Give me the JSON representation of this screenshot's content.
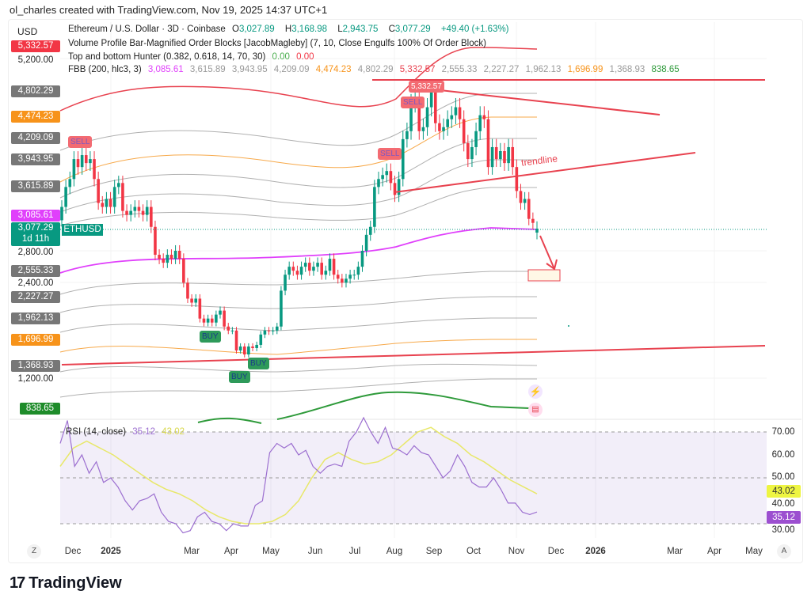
{
  "credit": "ol_charles created with TradingView.com, Nov 19, 2025 14:37 UTC+1",
  "currency": "USD",
  "symbol_line": {
    "title": "Ethereum / U.S. Dollar · 3D · Coinbase",
    "o_label": "O",
    "o": "3,027.89",
    "h_label": "H",
    "h": "3,168.98",
    "l_label": "L",
    "l": "2,943.75",
    "c_label": "C",
    "c": "3,077.29",
    "change": "+49.40 (+1.63%)"
  },
  "indicators": {
    "vp": "Volume Profile Bar-Magnified Order Blocks [JacobMagleby] (7, 10, Close Engulfs 100% Of Order Block)",
    "tbh": {
      "name": "Top and bottom Hunter (0.382, 0.618, 14, 70, 30)",
      "v1": "0.00",
      "v2": "0.00"
    },
    "fbb": {
      "name": "FBB (200, hlc3, 3)",
      "values": [
        "3,085.61",
        "3,615.89",
        "3,943.95",
        "4,209.09",
        "4,474.23",
        "4,802.29",
        "5,332.57",
        "2,555.33",
        "2,227.27",
        "1,962.13",
        "1,696.99",
        "1,368.93",
        "838.65"
      ]
    },
    "rsi": {
      "name": "RSI (14, close)",
      "value": "35.12",
      "ma": "43.02"
    }
  },
  "colors": {
    "up": "#089981",
    "down": "#f23645",
    "basis": "#e040fb",
    "orange": "#f7931a",
    "band_grey": "#9e9e9e",
    "rsi": "#9c6fd0",
    "rsi_ma": "#e8e86a",
    "drawing": "#e8424f"
  },
  "price_axis": {
    "ticks": [
      "5,200.00",
      "2,800.00",
      "2,400.00",
      "1,200.00"
    ],
    "tags": {
      "b_top": "5,332.57",
      "b6": "4,802.29",
      "b5": "4,474.23",
      "b4": "4,209.09",
      "b3": "3,943.95",
      "b2": "3,615.89",
      "basis": "3,085.61",
      "last": "3,077.29",
      "countdown": "1d 11h",
      "l2": "2,555.33",
      "l3": "2,227.27",
      "l4": "1,962.13",
      "l5": "1,696.99",
      "l6": "1,368.93",
      "l_bot": "838.65"
    },
    "symbol_tag": "ETHUSD"
  },
  "rsi_axis": {
    "ticks": [
      "70.00",
      "60.00",
      "50.00",
      "40.00",
      "30.00"
    ],
    "ma_tag": "43.02",
    "rsi_tag": "35.12"
  },
  "time_axis": {
    "labels": [
      "Dec",
      "2025",
      "Mar",
      "Apr",
      "May",
      "Jun",
      "Jul",
      "Aug",
      "Sep",
      "Oct",
      "Nov",
      "Dec",
      "2026",
      "Mar",
      "Apr",
      "May"
    ],
    "left_btn": "Z",
    "right_btn": "A"
  },
  "signals": {
    "sell": "SELL",
    "buy": "BUY"
  },
  "drawings": {
    "trendline_label": "trendline"
  },
  "brand": "TradingView",
  "chart_data": {
    "type": "candlestick",
    "interval": "3D",
    "x_start": "2024-11-21",
    "closes": [
      3350,
      3600,
      3700,
      3950,
      3850,
      4000,
      3900,
      3950,
      3700,
      3400,
      3350,
      3450,
      3350,
      3600,
      3650,
      3300,
      3250,
      3300,
      3350,
      3300,
      3250,
      3350,
      3100,
      2750,
      2700,
      2650,
      2750,
      2700,
      2800,
      2700,
      2400,
      2200,
      2150,
      2200,
      1950,
      1900,
      1950,
      1900,
      2000,
      2050,
      1850,
      1800,
      1800,
      1550,
      1600,
      1500,
      1600,
      1580,
      1620,
      1750,
      1800,
      1790,
      1800,
      1850,
      2300,
      2500,
      2600,
      2550,
      2500,
      2600,
      2650,
      2550,
      2600,
      2650,
      2500,
      2550,
      2700,
      2500,
      2450,
      2400,
      2450,
      2500,
      2500,
      2600,
      2800,
      3000,
      3100,
      3600,
      3700,
      3750,
      3800,
      3650,
      3500,
      3700,
      4200,
      4300,
      4650,
      4700,
      4300,
      4350,
      4600,
      4800,
      4400,
      4300,
      4350,
      4450,
      4500,
      4600,
      4450,
      4150,
      3950,
      4100,
      4300,
      4500,
      4450,
      3850,
      4100,
      3950,
      4050,
      3900,
      4100,
      3850,
      3550,
      3400,
      3450,
      3200,
      3150,
      3077.29
    ],
    "last": {
      "open": 3027.89,
      "high": 3168.98,
      "low": 2943.75,
      "close": 3077.29
    },
    "price_scale": "log",
    "rsi": [
      65,
      75,
      55,
      60,
      52,
      57,
      48,
      50,
      46,
      40,
      36,
      40,
      41,
      43,
      35,
      31,
      30,
      26,
      27,
      33,
      35,
      31,
      30,
      27,
      30,
      29,
      29,
      38,
      40,
      61,
      65,
      63,
      65,
      60,
      62,
      55,
      52,
      55,
      56,
      55,
      66,
      70,
      78,
      70,
      65,
      72,
      63,
      62,
      60,
      64,
      61,
      60,
      55,
      50,
      53,
      60,
      55,
      48,
      46,
      46,
      50,
      45,
      39,
      39,
      35,
      34,
      35.12
    ],
    "rsi_ma": [
      55,
      63,
      66,
      63,
      60,
      56,
      52,
      48,
      45,
      43,
      40,
      36,
      33,
      31,
      30,
      30,
      31,
      34,
      40,
      50,
      58,
      61,
      58,
      56,
      57,
      60,
      65,
      70,
      72,
      68,
      65,
      60,
      57,
      53,
      49,
      46,
      43.02
    ],
    "rsi_levels": [
      70,
      50,
      30
    ],
    "rsi_range": [
      20,
      80
    ]
  }
}
